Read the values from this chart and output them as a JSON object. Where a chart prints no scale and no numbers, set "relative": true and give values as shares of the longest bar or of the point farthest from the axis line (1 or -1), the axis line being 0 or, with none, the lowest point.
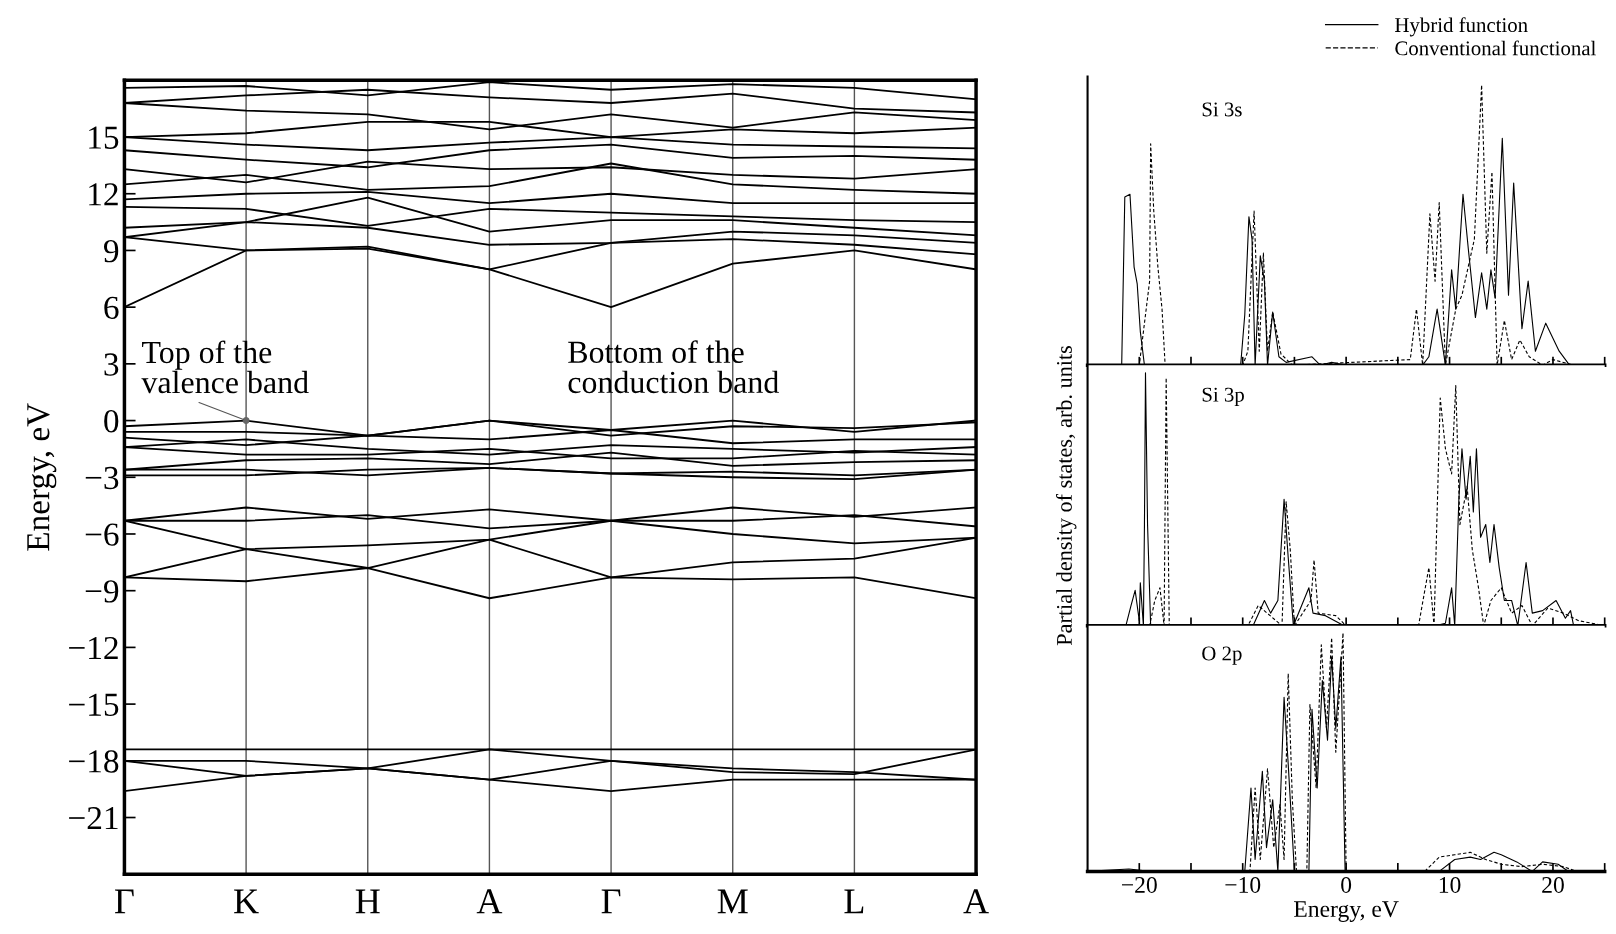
{
  "chart_data": [
    {
      "type": "line",
      "ylabel": "Energy, eV",
      "categories": [
        "Γ",
        "K",
        "H",
        "A",
        "Γ",
        "M",
        "L",
        "A"
      ],
      "ylim": [
        -24,
        18
      ],
      "yticks": [
        -21,
        -18,
        -15,
        -12,
        -9,
        -6,
        -3,
        0,
        3,
        6,
        9,
        12,
        15
      ],
      "grid": "x",
      "line_style": "solid",
      "annotations": [
        {
          "text": "Top of the\nvalence band",
          "x": "K",
          "y": 0
        },
        "Bottom of the\nconduction band"
      ],
      "series": [
        {
          "color": "#000000",
          "values": [
            -17.4,
            -17.4,
            -17.4,
            -17.4,
            -17.4,
            -17.4,
            -17.4,
            -17.4
          ]
        },
        {
          "color": "#000000",
          "values": [
            -18.0,
            -18.8,
            -18.4,
            -17.4,
            -18.0,
            -18.6,
            -18.7,
            -17.4
          ]
        },
        {
          "color": "#000000",
          "values": [
            -19.6,
            -18.8,
            -18.4,
            -19.0,
            -19.6,
            -19.0,
            -19.0,
            -19.0
          ]
        },
        {
          "color": "#000000",
          "values": [
            -18.0,
            -18.0,
            -18.4,
            -19.0,
            -18.0,
            -18.4,
            -18.6,
            -19.0
          ]
        },
        {
          "color": "#000000",
          "values": [
            -5.3,
            -4.6,
            -5.2,
            -4.7,
            -5.3,
            -4.6,
            -5.1,
            -4.6
          ]
        },
        {
          "color": "#000000",
          "values": [
            -5.3,
            -5.3,
            -5.0,
            -5.7,
            -5.3,
            -5.3,
            -5.0,
            -5.6
          ]
        },
        {
          "color": "#000000",
          "values": [
            -5.3,
            -6.8,
            -6.6,
            -6.3,
            -5.3,
            -6.0,
            -6.5,
            -6.2
          ]
        },
        {
          "color": "#000000",
          "values": [
            -8.3,
            -6.8,
            -7.8,
            -6.3,
            -8.3,
            -7.5,
            -7.3,
            -6.2
          ]
        },
        {
          "color": "#000000",
          "values": [
            -8.3,
            -8.5,
            -7.8,
            -9.4,
            -8.3,
            -8.4,
            -8.3,
            -9.4
          ]
        },
        {
          "color": "#000000",
          "values": [
            -0.3,
            0.0,
            -0.8,
            0.0,
            -0.5,
            0.0,
            -0.6,
            0.0
          ]
        },
        {
          "color": "#000000",
          "values": [
            -0.6,
            -0.6,
            -0.8,
            0.0,
            -0.8,
            -0.3,
            -0.4,
            -0.1
          ]
        },
        {
          "color": "#000000",
          "values": [
            -0.9,
            -1.3,
            -0.8,
            -1.0,
            -0.5,
            -1.2,
            -1.0,
            -1.0
          ]
        },
        {
          "color": "#000000",
          "values": [
            -1.4,
            -1.0,
            -1.5,
            -1.8,
            -1.3,
            -1.5,
            -1.7,
            -1.4
          ]
        },
        {
          "color": "#000000",
          "values": [
            -1.4,
            -1.8,
            -1.8,
            -1.5,
            -2.0,
            -2.0,
            -1.6,
            -1.8
          ]
        },
        {
          "color": "#000000",
          "values": [
            -2.6,
            -2.1,
            -2.0,
            -2.3,
            -1.7,
            -2.4,
            -2.2,
            -2.1
          ]
        },
        {
          "color": "#000000",
          "values": [
            -2.6,
            -2.6,
            -2.9,
            -2.5,
            -2.8,
            -2.7,
            -2.9,
            -2.6
          ]
        },
        {
          "color": "#000000",
          "values": [
            -2.9,
            -2.9,
            -2.6,
            -2.5,
            -2.8,
            -3.0,
            -3.1,
            -2.6
          ]
        },
        {
          "color": "#000000",
          "values": [
            6.0,
            9.0,
            9.1,
            8.0,
            6.0,
            8.3,
            9.0,
            8.0
          ]
        },
        {
          "color": "#000000",
          "values": [
            9.7,
            9.0,
            9.2,
            8.0,
            9.4,
            9.6,
            9.3,
            8.8
          ]
        },
        {
          "color": "#000000",
          "values": [
            9.7,
            10.5,
            10.2,
            9.3,
            9.4,
            10.0,
            9.8,
            9.4
          ]
        },
        {
          "color": "#000000",
          "values": [
            10.2,
            10.5,
            11.8,
            10.0,
            10.6,
            10.6,
            10.2,
            9.8
          ]
        },
        {
          "color": "#000000",
          "values": [
            11.3,
            11.2,
            10.3,
            11.2,
            11.0,
            10.8,
            10.6,
            10.5
          ]
        },
        {
          "color": "#000000",
          "values": [
            11.7,
            12.0,
            12.1,
            11.5,
            12.0,
            11.5,
            11.5,
            11.5
          ]
        },
        {
          "color": "#000000",
          "values": [
            12.5,
            13.0,
            12.2,
            12.4,
            13.6,
            12.5,
            12.2,
            12.0
          ]
        },
        {
          "color": "#000000",
          "values": [
            13.3,
            12.6,
            13.7,
            13.3,
            13.4,
            13.0,
            12.8,
            13.3
          ]
        },
        {
          "color": "#000000",
          "values": [
            14.3,
            13.8,
            13.4,
            14.3,
            14.6,
            13.9,
            14.0,
            13.8
          ]
        },
        {
          "color": "#000000",
          "values": [
            15.0,
            14.6,
            14.3,
            14.7,
            15.0,
            14.6,
            14.5,
            14.4
          ]
        },
        {
          "color": "#000000",
          "values": [
            15.0,
            15.2,
            15.8,
            15.8,
            15.0,
            15.4,
            15.2,
            15.5
          ]
        },
        {
          "color": "#000000",
          "values": [
            16.8,
            16.4,
            16.2,
            15.4,
            16.2,
            15.5,
            16.3,
            15.9
          ]
        },
        {
          "color": "#000000",
          "values": [
            16.8,
            17.2,
            17.5,
            17.1,
            16.8,
            17.3,
            16.5,
            16.3
          ]
        },
        {
          "color": "#000000",
          "values": [
            17.6,
            17.7,
            17.2,
            17.9,
            17.5,
            17.8,
            17.6,
            17.0
          ]
        }
      ]
    },
    {
      "type": "line",
      "title": "Si 3s",
      "relative": true,
      "xlim": [
        -25,
        25
      ],
      "tick_labels": false,
      "legend": "top right",
      "xticks": [
        {
          "value": -20,
          "label": null
        },
        {
          "value": -15,
          "label": null
        },
        {
          "value": -10,
          "label": null
        },
        {
          "value": -5,
          "label": null
        },
        {
          "value": 0,
          "label": null
        },
        {
          "value": 5,
          "label": null
        },
        {
          "value": 10,
          "label": null
        },
        {
          "value": 15,
          "label": null
        },
        {
          "value": 20,
          "label": null
        },
        {
          "value": 25,
          "label": null
        }
      ],
      "series": [
        {
          "name": "Hybrid function",
          "color": "#000000",
          "line_style": "solid",
          "x": [
            -25,
            -21.7,
            -21.4,
            -20.9,
            -20.5,
            -20.2,
            -19.9,
            -19.5,
            -10.2,
            -9.8,
            -9.4,
            -9.1,
            -8.8,
            -8.3,
            -7.9,
            -7.6,
            -7.1,
            -6.5,
            -5.8,
            -3.3,
            -2.5,
            -1.4,
            0,
            7.4,
            8.0,
            8.8,
            9.6,
            10.2,
            10.6,
            11.3,
            11.8,
            12.5,
            13.1,
            13.6,
            14.0,
            14.4,
            15.1,
            15.7,
            16.2,
            17.0,
            17.6,
            18.3,
            19.3,
            20.6,
            21.6,
            25
          ],
          "values": [
            0,
            0,
            0.6,
            0.61,
            0.35,
            0.29,
            0.12,
            0,
            0,
            0.18,
            0.53,
            0.45,
            0,
            0.39,
            0.3,
            0,
            0.19,
            0.03,
            0.01,
            0.03,
            0,
            0.01,
            0,
            0,
            0.03,
            0.2,
            0,
            0.34,
            0.2,
            0.61,
            0.42,
            0.17,
            0.33,
            0.2,
            0.34,
            0.24,
            0.81,
            0.25,
            0.65,
            0.13,
            0.3,
            0.05,
            0.15,
            0.05,
            0,
            0
          ]
        },
        {
          "name": "Conventional functional",
          "color": "#000000",
          "line_style": "dashed",
          "x": [
            -25,
            -20,
            -19.0,
            -18.9,
            -18.6,
            -18.2,
            -17.8,
            -17.5,
            -10.0,
            -9.5,
            -8.9,
            -8.4,
            -8.0,
            -7.6,
            -7.1,
            -6.3,
            -5.2,
            6.2,
            6.8,
            7.4,
            8.1,
            8.6,
            9.0,
            9.6,
            10.6,
            11.2,
            12.4,
            13.1,
            13.6,
            14.1,
            14.6,
            15.3,
            16.0,
            16.8,
            17.7,
            19.0,
            20.0,
            22.0,
            25
          ],
          "values": [
            0,
            0,
            0.3,
            0.79,
            0.55,
            0.35,
            0.2,
            0,
            0,
            0.05,
            0.55,
            0.05,
            0.4,
            0.05,
            0.19,
            0.04,
            0,
            0.02,
            0.2,
            0,
            0.54,
            0.3,
            0.58,
            0,
            0.2,
            0.25,
            0.45,
            1.0,
            0.4,
            0.69,
            0,
            0.16,
            0.02,
            0.09,
            0.03,
            0,
            0.02,
            0,
            0
          ]
        }
      ]
    },
    {
      "type": "line",
      "title": "Si 3p",
      "relative": true,
      "xlim": [
        -25,
        25
      ],
      "tick_labels": false,
      "ylabel": "Partial density of states, arb. units",
      "xticks": [
        {
          "value": -20,
          "label": null
        },
        {
          "value": -15,
          "label": null
        },
        {
          "value": -10,
          "label": null
        },
        {
          "value": -5,
          "label": null
        },
        {
          "value": 0,
          "label": null
        },
        {
          "value": 5,
          "label": null
        },
        {
          "value": 10,
          "label": null
        },
        {
          "value": 15,
          "label": null
        },
        {
          "value": 20,
          "label": null
        },
        {
          "value": 25,
          "label": null
        }
      ],
      "series": [
        {
          "color": "#000000",
          "line_style": "solid",
          "x": [
            -25,
            -21.3,
            -20.8,
            -20.4,
            -20.0,
            -19.9,
            -19.6,
            -19.5,
            -19.4,
            -19.2,
            -18.9,
            -9.0,
            -7.9,
            -7.3,
            -6.6,
            -6.0,
            -5.6,
            -5.1,
            -3.6,
            -3.2,
            -2.0,
            -0.2,
            8.6,
            9.6,
            10.2,
            10.5,
            10.9,
            11.2,
            11.6,
            12.0,
            12.3,
            12.6,
            13.0,
            13.5,
            13.9,
            14.3,
            14.8,
            15.3,
            16.0,
            16.6,
            17.4,
            18.0,
            19.0,
            20.3,
            21.2,
            21.7,
            22.0,
            25
          ],
          "values": [
            0,
            0,
            0.08,
            0.14,
            0.02,
            0.17,
            0,
            0.4,
            1.0,
            0.4,
            0,
            0,
            0.1,
            0.05,
            0.1,
            0.5,
            0.27,
            0,
            0.15,
            0.05,
            0.04,
            0,
            0,
            0.01,
            0.15,
            0,
            0.5,
            0.7,
            0.5,
            0.67,
            0.45,
            0.7,
            0.35,
            0.4,
            0.25,
            0.4,
            0.23,
            0.1,
            0.1,
            0,
            0.25,
            0.05,
            0.06,
            0.1,
            0.03,
            0.06,
            0,
            0
          ]
        },
        {
          "color": "#000000",
          "line_style": "dashed",
          "x": [
            -25,
            -19.0,
            -18.5,
            -18.0,
            -17.6,
            -17.4,
            -17.1,
            -9.5,
            -8.5,
            -6.2,
            -5.8,
            -5.4,
            -5.0,
            -3.4,
            -3.1,
            -2.7,
            -1.0,
            0,
            7.0,
            8.0,
            8.5,
            9.1,
            9.6,
            10.2,
            10.6,
            11.0,
            11.7,
            12.2,
            12.8,
            13.3,
            14.0,
            15.0,
            16.0,
            17.0,
            18.0,
            19.5,
            21.0,
            22.5,
            25
          ],
          "values": [
            0,
            0,
            0.1,
            0.15,
            0,
            0.98,
            0,
            0,
            0.08,
            0,
            0.49,
            0.3,
            0,
            0.1,
            0.26,
            0.05,
            0.04,
            0,
            0,
            0.23,
            0,
            0.9,
            0.7,
            0.6,
            0.95,
            0.4,
            0.55,
            0.3,
            0.15,
            0,
            0.1,
            0.15,
            0.05,
            0.08,
            0,
            0.07,
            0.05,
            0.02,
            0
          ]
        }
      ]
    },
    {
      "type": "line",
      "title": "O 2p",
      "relative": true,
      "xlim": [
        -25,
        25
      ],
      "tick_labels": "x",
      "xlabel": "Energy, eV",
      "xticks": [
        -20,
        {
          "value": -15,
          "label": null
        },
        -10,
        {
          "value": -5,
          "label": null
        },
        0,
        {
          "value": 5,
          "label": null
        },
        10,
        {
          "value": 15,
          "label": null
        },
        20,
        {
          "value": 25,
          "label": null
        }
      ],
      "series": [
        {
          "color": "#000000",
          "line_style": "solid",
          "x": [
            -25,
            -21,
            -19,
            -9.8,
            -9.2,
            -8.8,
            -8.1,
            -7.7,
            -7.1,
            -6.6,
            -6.0,
            -5.6,
            -5.0,
            -3.6,
            -3.3,
            -2.8,
            -2.3,
            -1.8,
            -1.4,
            -1.0,
            -0.5,
            -0.1,
            9.0,
            10.5,
            12.0,
            13.0,
            14.3,
            15.0,
            16.5,
            18.0,
            19.0,
            20.5,
            21.5,
            25
          ],
          "values": [
            0,
            0.01,
            0,
            0,
            0.35,
            0.05,
            0.42,
            0.1,
            0.3,
            0,
            0.73,
            0.45,
            0,
            0,
            0.68,
            0.35,
            0.8,
            0.55,
            0.9,
            0.6,
            0.9,
            0,
            0,
            0.05,
            0.06,
            0.05,
            0.08,
            0.07,
            0.04,
            0,
            0.04,
            0.03,
            0,
            0
          ]
        },
        {
          "color": "#000000",
          "line_style": "dashed",
          "x": [
            -25,
            -9.3,
            -8.8,
            -8.3,
            -7.6,
            -7.0,
            -6.4,
            -6.0,
            -5.6,
            -5.2,
            -4.8,
            -3.8,
            -3.5,
            -2.9,
            -2.4,
            -1.9,
            -1.4,
            -1.0,
            -0.3,
            0,
            7.6,
            9.0,
            10.5,
            12.0,
            13.5,
            15.0,
            17.0,
            19.0,
            21.0,
            22.3,
            25
          ],
          "values": [
            0,
            0,
            0.35,
            0.05,
            0.43,
            0.1,
            0.28,
            0.05,
            0.83,
            0.3,
            0,
            0,
            0.7,
            0.35,
            0.95,
            0.6,
            0.98,
            0.5,
            1.0,
            0,
            0,
            0.06,
            0.07,
            0.08,
            0.05,
            0.03,
            0.02,
            0.03,
            0.02,
            0,
            0
          ]
        }
      ]
    }
  ]
}
